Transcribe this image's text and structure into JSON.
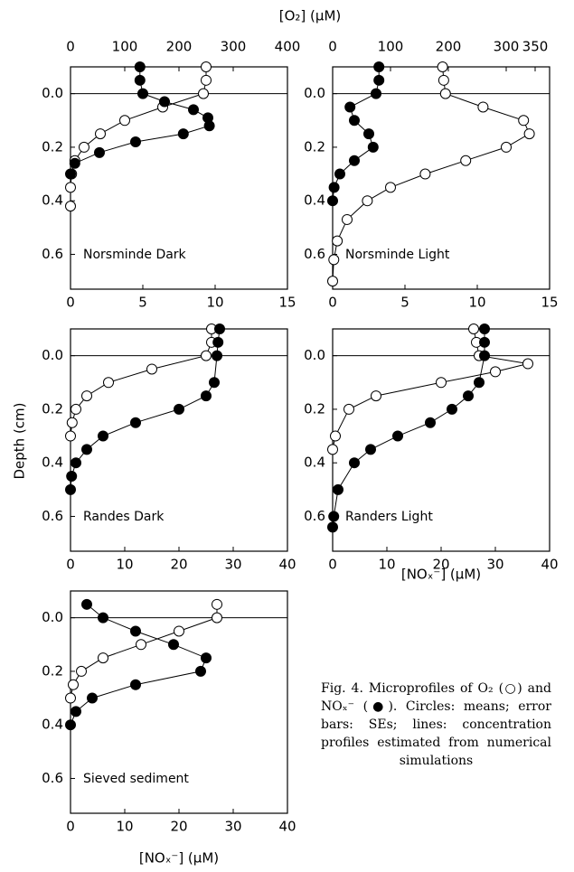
{
  "chart_data": [
    {
      "type": "scatter",
      "label": "Norsminde Dark",
      "xlim": [
        0,
        15
      ],
      "xticks": [
        0,
        5,
        10,
        15
      ],
      "x2lim": [
        0,
        400
      ],
      "x2ticks": [
        0,
        100,
        200,
        300,
        400
      ],
      "ylim": [
        -0.1,
        0.73
      ],
      "yticks": [
        {
          "value": 0,
          "label": "0.0"
        },
        {
          "value": 0.2,
          "label": "0.2"
        },
        {
          "value": 0.4,
          "label": "0.4"
        },
        {
          "value": 0.6,
          "label": "0.6"
        }
      ],
      "y_reversed": true,
      "series": [
        {
          "axis": "x2",
          "marker": "open",
          "x": [
            250,
            250,
            245,
            170,
            100,
            55,
            25,
            8,
            2,
            0,
            0
          ],
          "y": [
            -0.1,
            -0.05,
            0,
            0.05,
            0.1,
            0.15,
            0.2,
            0.25,
            0.3,
            0.35,
            0.42
          ]
        },
        {
          "axis": "x",
          "marker": "filled",
          "x": [
            4.8,
            4.8,
            5.0,
            6.5,
            8.5,
            9.5,
            9.6,
            7.8,
            4.5,
            2.0,
            0.3,
            0
          ],
          "y": [
            -0.1,
            -0.05,
            0,
            0.03,
            0.06,
            0.09,
            0.12,
            0.15,
            0.18,
            0.22,
            0.26,
            0.3
          ]
        }
      ]
    },
    {
      "type": "scatter",
      "label": "Norsminde Light",
      "xlim": [
        0,
        15
      ],
      "xticks": [
        0,
        5,
        10,
        15
      ],
      "x2lim": [
        0,
        375
      ],
      "x2ticks": [
        0,
        100,
        200,
        300,
        350
      ],
      "ylim": [
        -0.1,
        0.73
      ],
      "yticks": [
        {
          "value": 0,
          "label": "0.0"
        },
        {
          "value": 0.2,
          "label": "0.2"
        },
        {
          "value": 0.4,
          "label": "0.4"
        },
        {
          "value": 0.6,
          "label": "0.6"
        }
      ],
      "y_reversed": true,
      "series": [
        {
          "axis": "x2",
          "marker": "open",
          "x": [
            190,
            192,
            195,
            260,
            330,
            340,
            300,
            230,
            160,
            100,
            60,
            25,
            8,
            2,
            0
          ],
          "y": [
            -0.1,
            -0.05,
            0,
            0.05,
            0.1,
            0.15,
            0.2,
            0.25,
            0.3,
            0.35,
            0.4,
            0.47,
            0.55,
            0.62,
            0.7
          ]
        },
        {
          "axis": "x",
          "marker": "filled",
          "x": [
            3.2,
            3.2,
            3.0,
            1.2,
            1.5,
            2.5,
            2.8,
            1.5,
            0.5,
            0.1,
            0
          ],
          "y": [
            -0.1,
            -0.05,
            0,
            0.05,
            0.1,
            0.15,
            0.2,
            0.25,
            0.3,
            0.35,
            0.4
          ]
        }
      ]
    },
    {
      "type": "scatter",
      "label": "Randes Dark",
      "xlim": [
        0,
        40
      ],
      "xticks": [
        0,
        10,
        20,
        30,
        40
      ],
      "ylim": [
        -0.1,
        0.73
      ],
      "yticks": [
        {
          "value": 0,
          "label": "0.0"
        },
        {
          "value": 0.2,
          "label": "0.2"
        },
        {
          "value": 0.4,
          "label": "0.4"
        },
        {
          "value": 0.6,
          "label": "0.6"
        }
      ],
      "y_reversed": true,
      "series": [
        {
          "axis": "x",
          "marker": "open",
          "x": [
            26,
            26,
            25,
            15,
            7,
            3,
            1,
            0.3,
            0
          ],
          "y": [
            -0.1,
            -0.05,
            0,
            0.05,
            0.1,
            0.15,
            0.2,
            0.25,
            0.3
          ]
        },
        {
          "axis": "x",
          "marker": "filled",
          "x": [
            27.5,
            27.2,
            27,
            26.5,
            25,
            20,
            12,
            6,
            3,
            1,
            0.2,
            0
          ],
          "y": [
            -0.1,
            -0.05,
            0,
            0.1,
            0.15,
            0.2,
            0.25,
            0.3,
            0.35,
            0.4,
            0.45,
            0.5
          ]
        }
      ]
    },
    {
      "type": "scatter",
      "label": "Randers Light",
      "xlim": [
        0,
        40
      ],
      "xticks": [
        0,
        10,
        20,
        30,
        40
      ],
      "ylim": [
        -0.1,
        0.73
      ],
      "yticks": [
        {
          "value": 0,
          "label": "0.0"
        },
        {
          "value": 0.2,
          "label": "0.2"
        },
        {
          "value": 0.4,
          "label": "0.4"
        },
        {
          "value": 0.6,
          "label": "0.6"
        }
      ],
      "y_reversed": true,
      "series": [
        {
          "axis": "x",
          "marker": "open",
          "x": [
            26,
            26.5,
            27,
            36,
            30,
            20,
            8,
            3,
            0.5,
            0
          ],
          "y": [
            -0.1,
            -0.05,
            0,
            0.03,
            0.06,
            0.1,
            0.15,
            0.2,
            0.3,
            0.35
          ]
        },
        {
          "axis": "x",
          "marker": "filled",
          "x": [
            28,
            28,
            28,
            27,
            25,
            22,
            18,
            12,
            7,
            4,
            1,
            0.2,
            0
          ],
          "y": [
            -0.1,
            -0.05,
            0,
            0.1,
            0.15,
            0.2,
            0.25,
            0.3,
            0.35,
            0.4,
            0.5,
            0.6,
            0.64
          ]
        }
      ]
    },
    {
      "type": "scatter",
      "label": "Sieved sediment",
      "xlim": [
        0,
        40
      ],
      "xticks": [
        0,
        10,
        20,
        30,
        40
      ],
      "ylim": [
        -0.1,
        0.73
      ],
      "yticks": [
        {
          "value": 0,
          "label": "0.0"
        },
        {
          "value": 0.2,
          "label": "0.2"
        },
        {
          "value": 0.4,
          "label": "0.4"
        },
        {
          "value": 0.6,
          "label": "0.6"
        }
      ],
      "y_reversed": true,
      "series": [
        {
          "axis": "x",
          "marker": "open",
          "x": [
            27,
            27,
            20,
            13,
            6,
            2,
            0.5,
            0
          ],
          "y": [
            -0.05,
            0,
            0.05,
            0.1,
            0.15,
            0.2,
            0.25,
            0.3
          ]
        },
        {
          "axis": "x",
          "marker": "filled",
          "x": [
            3,
            6,
            12,
            19,
            25,
            24,
            12,
            4,
            1,
            0
          ],
          "y": [
            -0.05,
            0,
            0.05,
            0.1,
            0.15,
            0.2,
            0.25,
            0.3,
            0.35,
            0.4
          ]
        }
      ]
    }
  ],
  "axis_labels": {
    "top": "[O₂] (μM)",
    "bottom": "[NOₓ⁻] (μM)",
    "left": "Depth (cm)"
  },
  "caption": "Fig. 4. Microprofiles of O₂ (○) and NOₓ⁻ (●). Circles: means; error bars: SEs; lines: concentration profiles estimated from numerical simulations"
}
